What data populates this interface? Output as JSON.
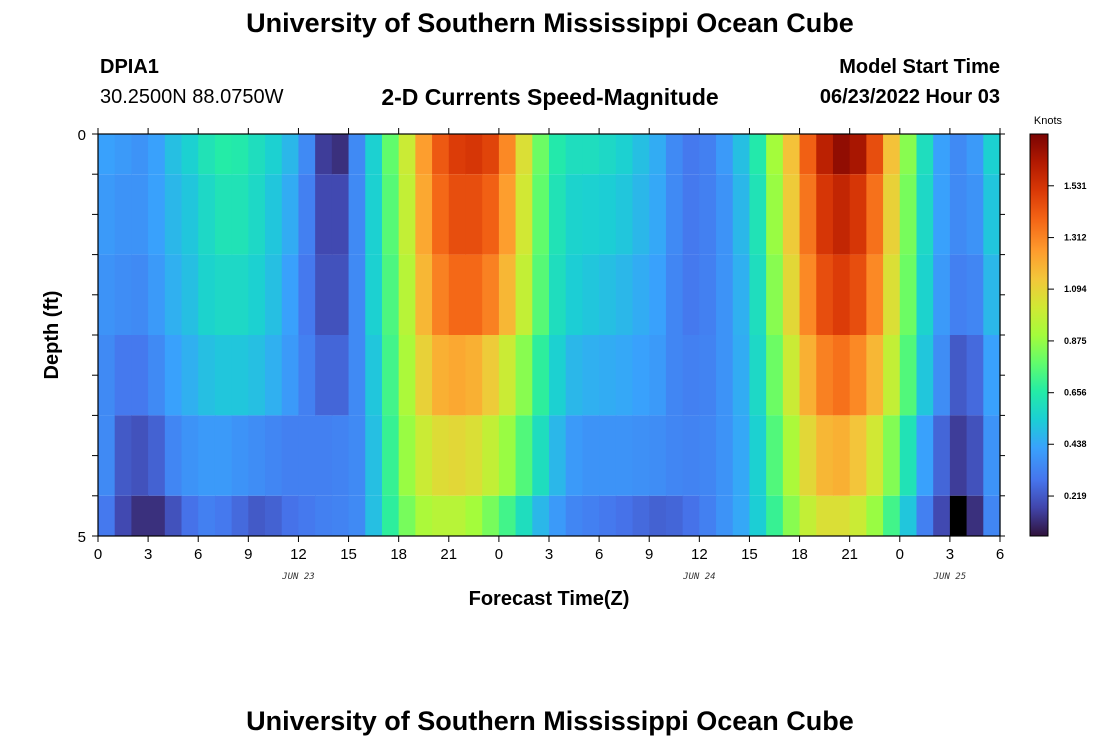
{
  "header": {
    "title": "University of Southern Mississippi Ocean Cube",
    "station_id": "DPIA1",
    "coordinates": "30.2500N  88.0750W",
    "plot_title": "2-D Currents Speed-Magnitude",
    "model_start_label": "Model Start Time",
    "model_start_value": "06/23/2022 Hour 03"
  },
  "footer": {
    "title": "University of Southern Mississippi Ocean Cube"
  },
  "chart_data": {
    "type": "heatmap",
    "xlabel": "Forecast Time(Z)",
    "ylabel": "Depth (ft)",
    "colorbar_label": "Knots",
    "x_tick_labels": [
      "0",
      "3",
      "6",
      "9",
      "12",
      "15",
      "18",
      "21",
      "0",
      "3",
      "6",
      "9",
      "12",
      "15",
      "18",
      "21",
      "0",
      "3",
      "6"
    ],
    "date_labels": [
      {
        "text": "JUN 23",
        "hour": 12
      },
      {
        "text": "JUN 24",
        "hour": 36
      },
      {
        "text": "JUN 25",
        "hour": 51
      }
    ],
    "y_tick_labels": [
      {
        "depth": 0,
        "label": "0"
      },
      {
        "depth": 5,
        "label": "5"
      }
    ],
    "xlim_hours": [
      0,
      54
    ],
    "ylim_depth_ft": [
      0,
      5
    ],
    "value_range_knots": [
      0.05,
      1.75
    ],
    "colorbar_ticks": [
      0.219,
      0.438,
      0.656,
      0.875,
      1.094,
      1.312,
      1.531
    ],
    "colorbar_tick_labels": [
      "0.219",
      "0.438",
      "0.656",
      "0.875",
      "1.094",
      "1.312",
      "1.531"
    ],
    "time_step_hours": 1,
    "depth_layers": [
      {
        "top": 0.0,
        "bottom": 0.5
      },
      {
        "top": 0.5,
        "bottom": 1.5
      },
      {
        "top": 1.5,
        "bottom": 2.5
      },
      {
        "top": 2.5,
        "bottom": 3.5
      },
      {
        "top": 3.5,
        "bottom": 4.5
      },
      {
        "top": 4.5,
        "bottom": 5.0
      }
    ],
    "speed_knots": [
      [
        0.42,
        0.4,
        0.38,
        0.42,
        0.5,
        0.55,
        0.62,
        0.66,
        0.65,
        0.6,
        0.55,
        0.48,
        0.35,
        0.15,
        0.12,
        0.35,
        0.55,
        0.78,
        1.0,
        1.25,
        1.42,
        1.5,
        1.52,
        1.48,
        1.3,
        1.05,
        0.8,
        0.65,
        0.6,
        0.6,
        0.58,
        0.55,
        0.5,
        0.45,
        0.35,
        0.3,
        0.32,
        0.4,
        0.5,
        0.65,
        0.9,
        1.15,
        1.4,
        1.6,
        1.7,
        1.65,
        1.45,
        1.15,
        0.85,
        0.6,
        0.42,
        0.35,
        0.4,
        0.55
      ],
      [
        0.4,
        0.38,
        0.38,
        0.42,
        0.48,
        0.52,
        0.58,
        0.62,
        0.62,
        0.58,
        0.52,
        0.45,
        0.32,
        0.18,
        0.18,
        0.35,
        0.55,
        0.76,
        0.98,
        1.22,
        1.38,
        1.45,
        1.45,
        1.4,
        1.25,
        1.02,
        0.78,
        0.62,
        0.56,
        0.55,
        0.54,
        0.52,
        0.48,
        0.44,
        0.35,
        0.3,
        0.32,
        0.38,
        0.48,
        0.62,
        0.88,
        1.12,
        1.35,
        1.52,
        1.58,
        1.52,
        1.36,
        1.1,
        0.82,
        0.58,
        0.42,
        0.35,
        0.38,
        0.52
      ],
      [
        0.38,
        0.36,
        0.35,
        0.4,
        0.46,
        0.5,
        0.56,
        0.58,
        0.58,
        0.55,
        0.5,
        0.42,
        0.3,
        0.2,
        0.2,
        0.35,
        0.55,
        0.74,
        0.95,
        1.18,
        1.32,
        1.38,
        1.38,
        1.32,
        1.18,
        0.98,
        0.76,
        0.6,
        0.54,
        0.52,
        0.5,
        0.48,
        0.45,
        0.42,
        0.34,
        0.3,
        0.32,
        0.38,
        0.46,
        0.6,
        0.85,
        1.08,
        1.3,
        1.45,
        1.5,
        1.45,
        1.3,
        1.05,
        0.8,
        0.56,
        0.4,
        0.32,
        0.34,
        0.48
      ],
      [
        0.35,
        0.3,
        0.3,
        0.35,
        0.42,
        0.46,
        0.5,
        0.52,
        0.52,
        0.5,
        0.46,
        0.4,
        0.32,
        0.25,
        0.25,
        0.35,
        0.52,
        0.72,
        0.92,
        1.1,
        1.2,
        1.22,
        1.2,
        1.12,
        1.0,
        0.85,
        0.68,
        0.55,
        0.48,
        0.46,
        0.45,
        0.44,
        0.42,
        0.4,
        0.34,
        0.32,
        0.33,
        0.38,
        0.45,
        0.58,
        0.8,
        1.0,
        1.2,
        1.32,
        1.36,
        1.3,
        1.18,
        0.98,
        0.75,
        0.52,
        0.36,
        0.22,
        0.26,
        0.42
      ],
      [
        0.35,
        0.22,
        0.2,
        0.24,
        0.34,
        0.38,
        0.4,
        0.4,
        0.38,
        0.36,
        0.34,
        0.32,
        0.32,
        0.32,
        0.33,
        0.35,
        0.5,
        0.7,
        0.88,
        1.0,
        1.06,
        1.08,
        1.05,
        0.98,
        0.88,
        0.75,
        0.6,
        0.48,
        0.4,
        0.38,
        0.38,
        0.38,
        0.37,
        0.36,
        0.34,
        0.33,
        0.34,
        0.38,
        0.44,
        0.55,
        0.75,
        0.92,
        1.08,
        1.18,
        1.2,
        1.14,
        1.02,
        0.84,
        0.62,
        0.42,
        0.25,
        0.15,
        0.2,
        0.38
      ],
      [
        0.3,
        0.18,
        0.12,
        0.12,
        0.2,
        0.28,
        0.32,
        0.3,
        0.26,
        0.22,
        0.24,
        0.28,
        0.3,
        0.32,
        0.33,
        0.35,
        0.5,
        0.68,
        0.82,
        0.92,
        0.95,
        0.95,
        0.9,
        0.82,
        0.72,
        0.6,
        0.48,
        0.4,
        0.34,
        0.32,
        0.3,
        0.28,
        0.26,
        0.24,
        0.25,
        0.28,
        0.32,
        0.38,
        0.44,
        0.54,
        0.7,
        0.85,
        0.98,
        1.05,
        1.05,
        1.0,
        0.88,
        0.72,
        0.52,
        0.32,
        0.18,
        0.05,
        0.12,
        0.34
      ]
    ]
  }
}
